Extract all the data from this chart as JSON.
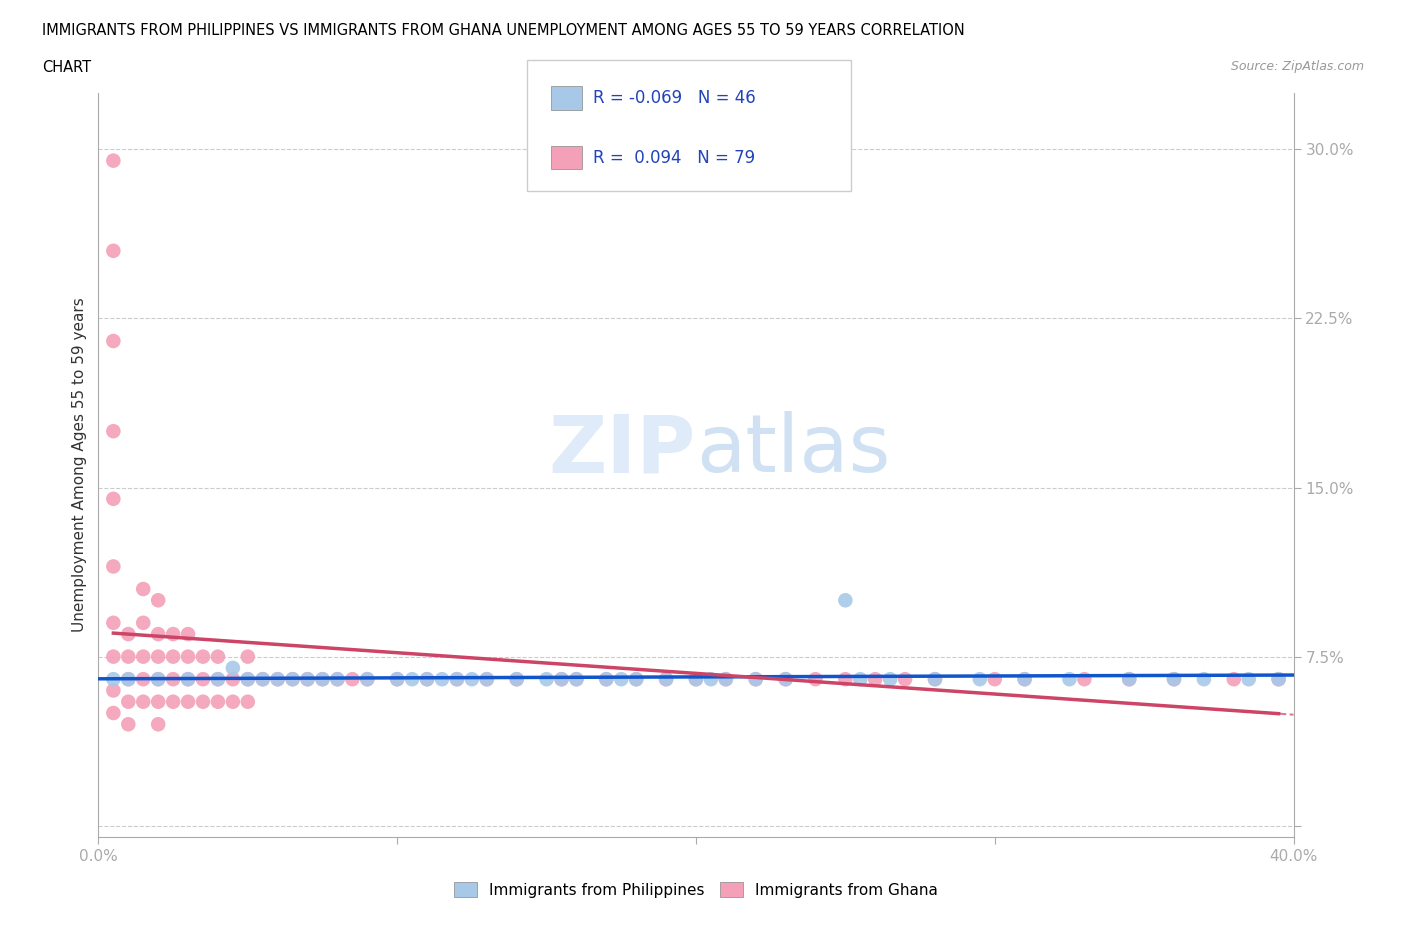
{
  "title_line1": "IMMIGRANTS FROM PHILIPPINES VS IMMIGRANTS FROM GHANA UNEMPLOYMENT AMONG AGES 55 TO 59 YEARS CORRELATION",
  "title_line2": "CHART",
  "source": "Source: ZipAtlas.com",
  "ylabel": "Unemployment Among Ages 55 to 59 years",
  "xlim": [
    0.0,
    0.4
  ],
  "ylim": [
    -0.005,
    0.325
  ],
  "xticks": [
    0.0,
    0.1,
    0.2,
    0.3,
    0.4
  ],
  "xticklabels": [
    "0.0%",
    "",
    "",
    "",
    "40.0%"
  ],
  "yticks": [
    0.0,
    0.075,
    0.15,
    0.225,
    0.3
  ],
  "yticklabels": [
    "",
    "7.5%",
    "15.0%",
    "22.5%",
    "30.0%"
  ],
  "philippines_color": "#a8c8e8",
  "ghana_color": "#f4a0b8",
  "philippines_line_color": "#1155cc",
  "ghana_line_color": "#cc4466",
  "R_philippines": -0.069,
  "N_philippines": 46,
  "R_ghana": 0.094,
  "N_ghana": 79,
  "legend_text_color": "#2244bb",
  "watermark": "ZIPatlas",
  "philippines_x": [
    0.005,
    0.01,
    0.02,
    0.03,
    0.04,
    0.045,
    0.05,
    0.055,
    0.06,
    0.065,
    0.07,
    0.075,
    0.08,
    0.09,
    0.1,
    0.105,
    0.11,
    0.115,
    0.12,
    0.125,
    0.13,
    0.14,
    0.15,
    0.155,
    0.16,
    0.17,
    0.175,
    0.18,
    0.19,
    0.2,
    0.205,
    0.21,
    0.22,
    0.23,
    0.25,
    0.255,
    0.265,
    0.28,
    0.295,
    0.31,
    0.325,
    0.345,
    0.36,
    0.37,
    0.385,
    0.395
  ],
  "philippines_y": [
    0.065,
    0.065,
    0.065,
    0.065,
    0.065,
    0.07,
    0.065,
    0.065,
    0.065,
    0.065,
    0.065,
    0.065,
    0.065,
    0.065,
    0.065,
    0.065,
    0.065,
    0.065,
    0.065,
    0.065,
    0.065,
    0.065,
    0.065,
    0.065,
    0.065,
    0.065,
    0.065,
    0.065,
    0.065,
    0.065,
    0.065,
    0.065,
    0.065,
    0.065,
    0.1,
    0.065,
    0.065,
    0.065,
    0.065,
    0.065,
    0.065,
    0.065,
    0.065,
    0.065,
    0.065,
    0.065
  ],
  "ghana_x": [
    0.005,
    0.005,
    0.005,
    0.005,
    0.005,
    0.005,
    0.005,
    0.005,
    0.005,
    0.005,
    0.01,
    0.01,
    0.01,
    0.01,
    0.01,
    0.015,
    0.015,
    0.015,
    0.015,
    0.015,
    0.02,
    0.02,
    0.02,
    0.02,
    0.02,
    0.02,
    0.025,
    0.025,
    0.025,
    0.025,
    0.03,
    0.03,
    0.03,
    0.03,
    0.035,
    0.035,
    0.035,
    0.04,
    0.04,
    0.04,
    0.045,
    0.045,
    0.05,
    0.05,
    0.05,
    0.055,
    0.06,
    0.065,
    0.07,
    0.075,
    0.08,
    0.085,
    0.09,
    0.1,
    0.11,
    0.12,
    0.13,
    0.14,
    0.155,
    0.16,
    0.17,
    0.18,
    0.19,
    0.2,
    0.21,
    0.22,
    0.23,
    0.24,
    0.25,
    0.26,
    0.27,
    0.28,
    0.3,
    0.31,
    0.33,
    0.345,
    0.36,
    0.38,
    0.395
  ],
  "ghana_y": [
    0.295,
    0.255,
    0.215,
    0.175,
    0.145,
    0.115,
    0.09,
    0.075,
    0.06,
    0.05,
    0.085,
    0.075,
    0.065,
    0.055,
    0.045,
    0.105,
    0.09,
    0.075,
    0.065,
    0.055,
    0.1,
    0.085,
    0.075,
    0.065,
    0.055,
    0.045,
    0.085,
    0.075,
    0.065,
    0.055,
    0.085,
    0.075,
    0.065,
    0.055,
    0.075,
    0.065,
    0.055,
    0.075,
    0.065,
    0.055,
    0.065,
    0.055,
    0.075,
    0.065,
    0.055,
    0.065,
    0.065,
    0.065,
    0.065,
    0.065,
    0.065,
    0.065,
    0.065,
    0.065,
    0.065,
    0.065,
    0.065,
    0.065,
    0.065,
    0.065,
    0.065,
    0.065,
    0.065,
    0.065,
    0.065,
    0.065,
    0.065,
    0.065,
    0.065,
    0.065,
    0.065,
    0.065,
    0.065,
    0.065,
    0.065,
    0.065,
    0.065,
    0.065,
    0.065
  ]
}
